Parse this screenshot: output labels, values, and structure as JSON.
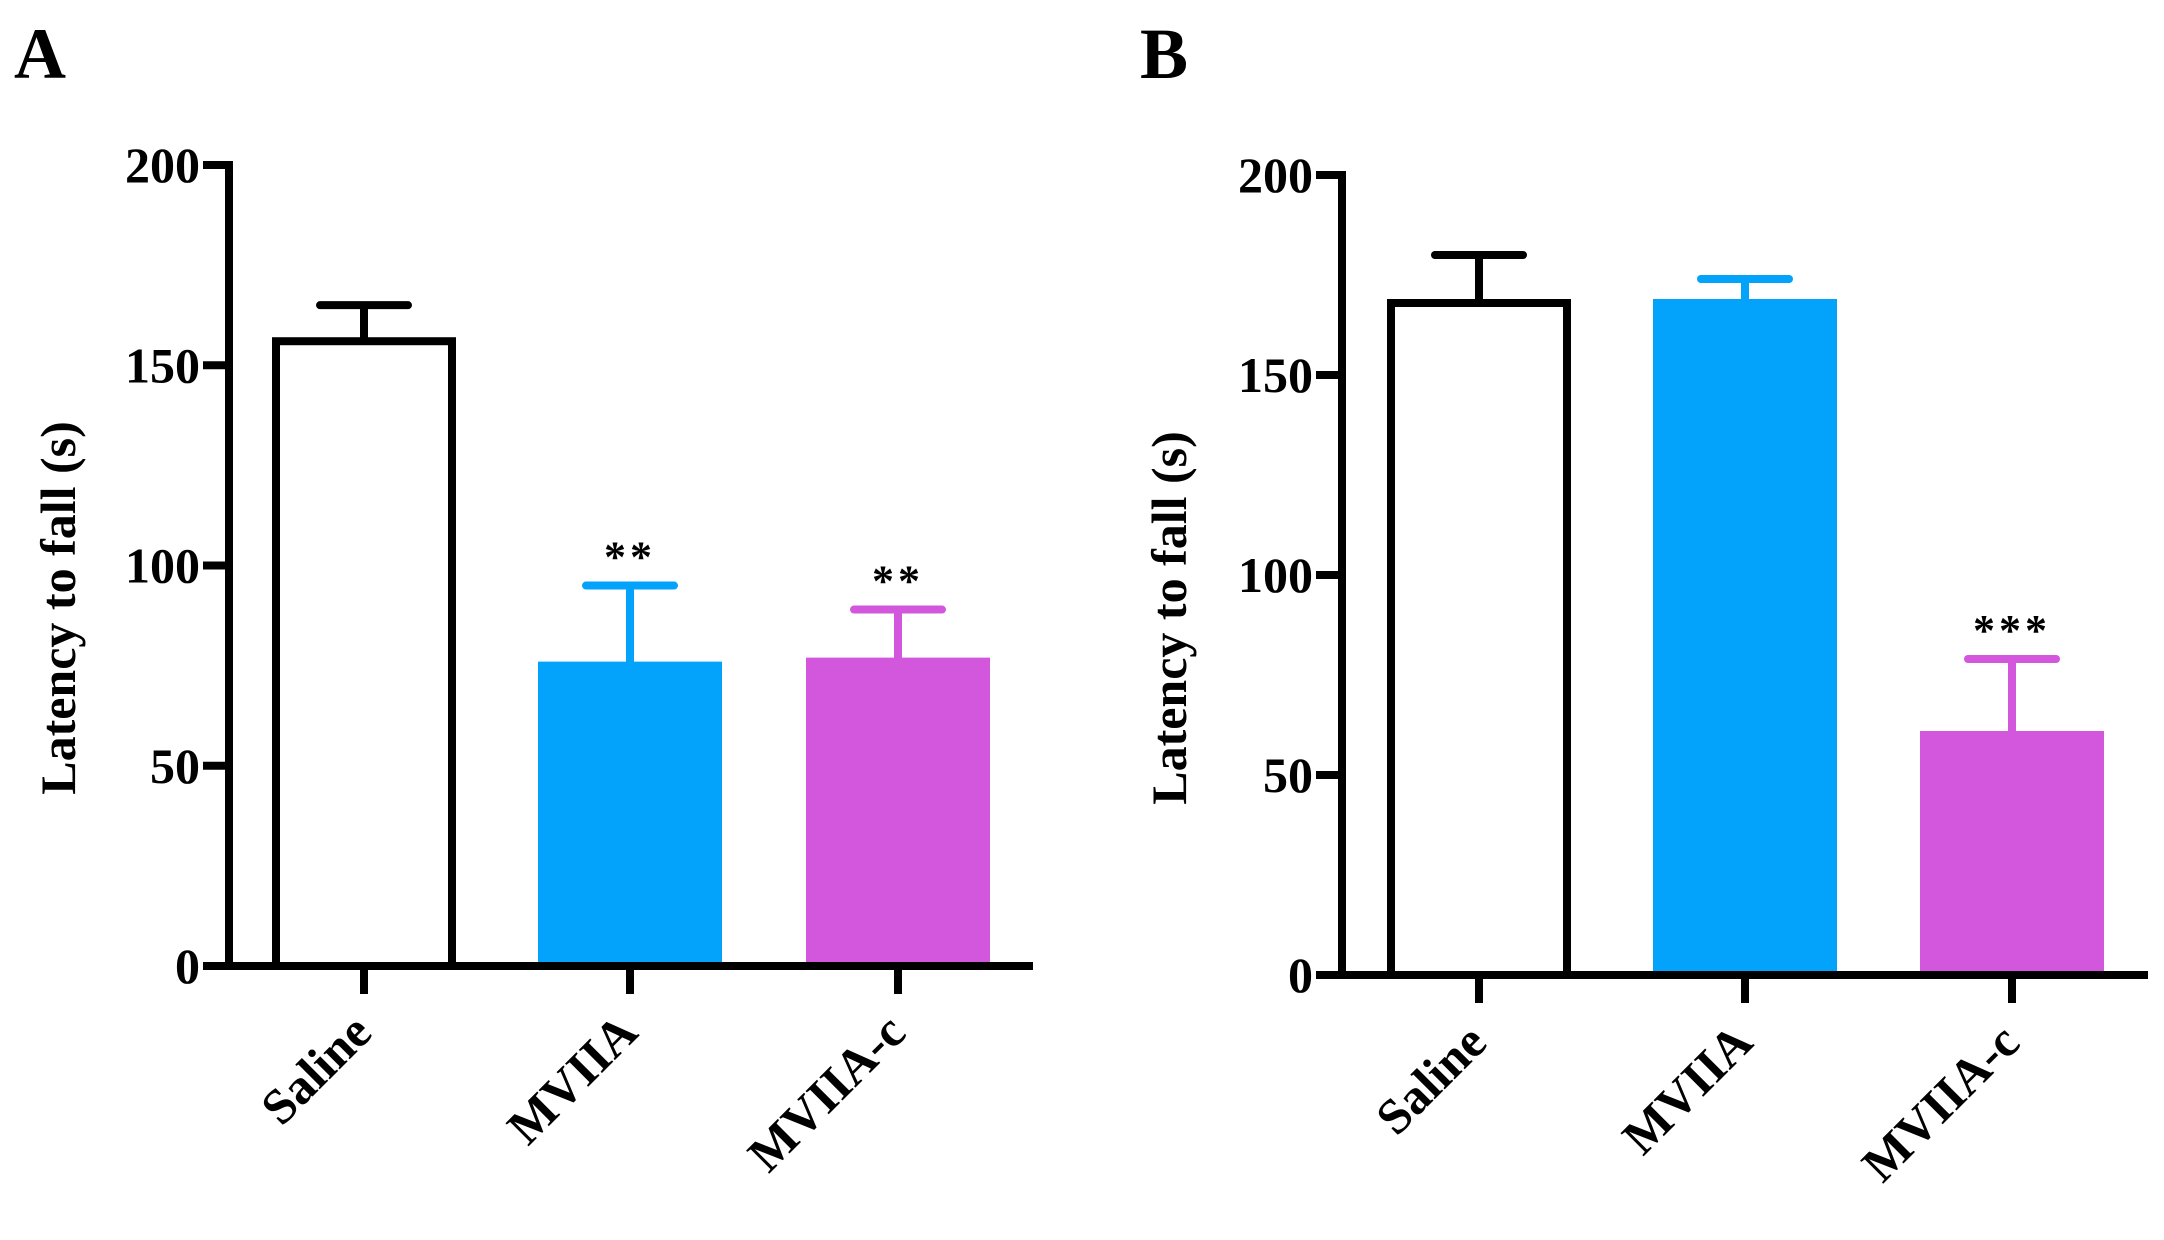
{
  "chart_data": [
    {
      "panel": "A",
      "type": "bar",
      "categories": [
        "Saline",
        "MVIIA",
        "MVIIA-c"
      ],
      "values": [
        156,
        75,
        76
      ],
      "errors": [
        9,
        20,
        13
      ],
      "significance": [
        "",
        "**",
        "**"
      ],
      "colors": [
        "#ffffff",
        "#03a2fb",
        "#d257dc"
      ],
      "ylabel": "Latency to fall (s)",
      "xlabel": "",
      "ylim": [
        0,
        200
      ],
      "yticks": [
        0,
        50,
        100,
        150,
        200
      ],
      "ytick_labels": [
        "0",
        "50",
        "100",
        "150",
        "200"
      ]
    },
    {
      "panel": "B",
      "type": "bar",
      "categories": [
        "Saline",
        "MVIIA",
        "MVIIA-c"
      ],
      "values": [
        168,
        168,
        60
      ],
      "errors": [
        12,
        6,
        19
      ],
      "significance": [
        "",
        "",
        "***"
      ],
      "colors": [
        "#ffffff",
        "#03a2fb",
        "#d257dc"
      ],
      "ylabel": "Latency to fall (s)",
      "xlabel": "",
      "ylim": [
        0,
        200
      ],
      "yticks": [
        0,
        50,
        100,
        150,
        200
      ],
      "ytick_labels": [
        "0",
        "50",
        "100",
        "150",
        "200"
      ]
    }
  ]
}
